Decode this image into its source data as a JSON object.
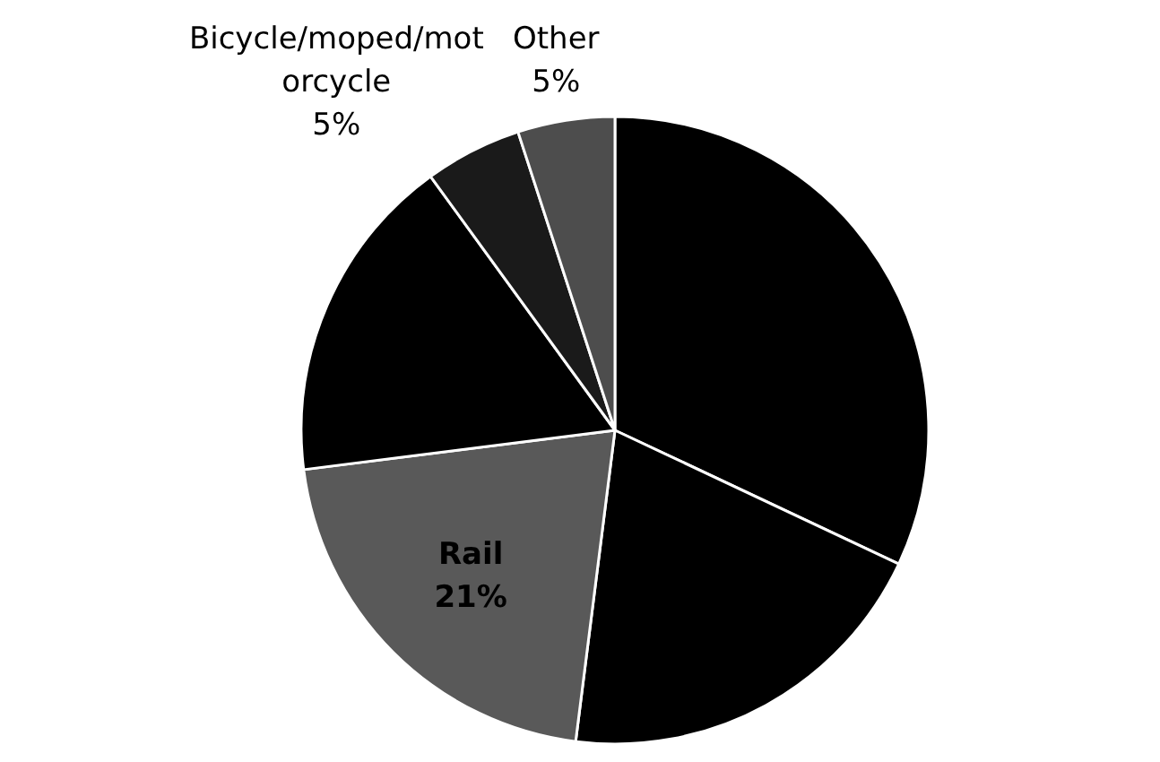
{
  "chart_data": {
    "type": "pie",
    "categories": [
      null,
      null,
      "Rail",
      null,
      "Bicycle/moped/motorcycle",
      "Other"
    ],
    "values": [
      32,
      20,
      21,
      17,
      5,
      5
    ],
    "value_labels": [
      null,
      null,
      "21%",
      null,
      "5%",
      "5%"
    ],
    "colors": [
      "#000000",
      "#000000",
      "#595959",
      "#000000",
      "#1a1a1a",
      "#4d4d4d"
    ]
  }
}
